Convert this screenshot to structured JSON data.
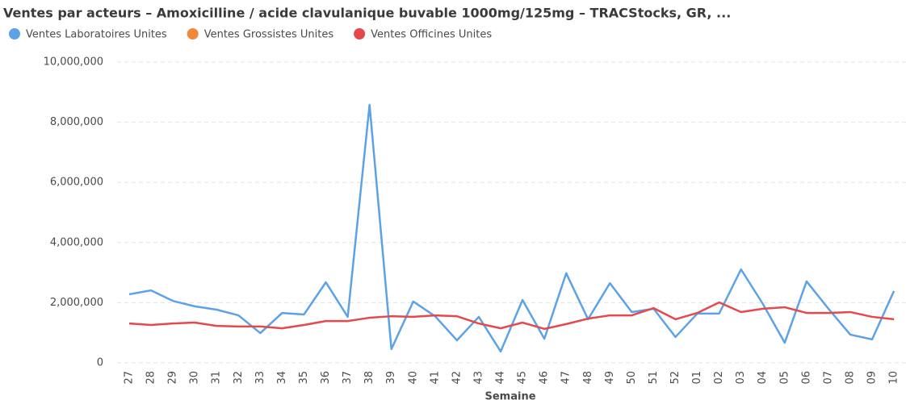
{
  "chart_data": {
    "type": "line",
    "title": "Ventes par acteurs – Amoxicilline / acide clavulanique buvable 1000mg/125mg – TRACStocks, GR, ...",
    "xlabel": "Semaine",
    "categories": [
      "27",
      "28",
      "29",
      "30",
      "31",
      "32",
      "33",
      "34",
      "35",
      "36",
      "37",
      "38",
      "39",
      "40",
      "41",
      "42",
      "43",
      "44",
      "45",
      "46",
      "47",
      "48",
      "49",
      "50",
      "51",
      "52",
      "01",
      "02",
      "03",
      "04",
      "05",
      "06",
      "07",
      "08",
      "09",
      "10"
    ],
    "series": [
      {
        "name": "Ventes Laboratoires Unites",
        "color": "#5ba3e6",
        "values": [
          2280000,
          2410000,
          2060000,
          1880000,
          1770000,
          1580000,
          990000,
          1660000,
          1610000,
          2680000,
          1530000,
          8580000,
          460000,
          2040000,
          1550000,
          750000,
          1530000,
          380000,
          2090000,
          800000,
          2980000,
          1450000,
          2650000,
          1690000,
          1800000,
          860000,
          1640000,
          1640000,
          3110000,
          1960000,
          670000,
          2710000,
          1800000,
          940000,
          780000,
          2390000
        ]
      },
      {
        "name": "Ventes Grossistes Unites",
        "color": "#f0883a",
        "values": [
          null,
          null,
          null,
          null,
          null,
          null,
          null,
          null,
          null,
          null,
          null,
          null,
          null,
          null,
          null,
          null,
          null,
          null,
          null,
          null,
          null,
          null,
          null,
          null,
          null,
          null,
          null,
          null,
          null,
          null,
          null,
          null,
          null,
          null,
          null,
          null
        ]
      },
      {
        "name": "Ventes Officines Unites",
        "color": "#e5484d",
        "values": [
          1310000,
          1260000,
          1310000,
          1340000,
          1230000,
          1210000,
          1210000,
          1150000,
          1260000,
          1390000,
          1390000,
          1500000,
          1550000,
          1530000,
          1580000,
          1550000,
          1310000,
          1150000,
          1340000,
          1130000,
          1290000,
          1470000,
          1580000,
          1580000,
          1820000,
          1450000,
          1660000,
          2010000,
          1690000,
          1800000,
          1850000,
          1660000,
          1660000,
          1690000,
          1530000,
          1450000
        ]
      }
    ],
    "ylim": [
      0,
      10000000
    ],
    "yticks": [
      0,
      {
        "value": 2000000,
        "label": "2,000,000"
      },
      {
        "value": 4000000,
        "label": "4,000,000"
      },
      {
        "value": 6000000,
        "label": "6,000,000"
      },
      {
        "value": 8000000,
        "label": "8,000,000"
      },
      {
        "value": 10000000,
        "label": "10,000,000"
      }
    ],
    "grid": true
  }
}
